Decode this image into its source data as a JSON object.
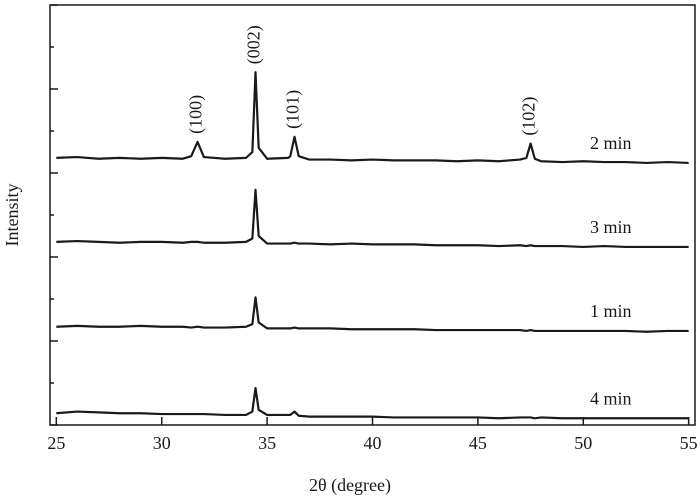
{
  "chart_data": {
    "type": "line",
    "xlabel": "2θ (degree)",
    "ylabel": "Intensity",
    "x": [
      25,
      26,
      27,
      28,
      29,
      30,
      31,
      31.4,
      31.7,
      32,
      33,
      34,
      34.3,
      34.45,
      34.6,
      35,
      36,
      36.1,
      36.3,
      36.5,
      37,
      38,
      39,
      40,
      41,
      42,
      43,
      44,
      45,
      46,
      47,
      47.3,
      47.5,
      47.7,
      48,
      49,
      50,
      51,
      52,
      53,
      54,
      55
    ],
    "series": [
      {
        "name": "2 min",
        "color": "#1a1a1a",
        "values": [
          3.18,
          3.19,
          3.17,
          3.18,
          3.17,
          3.18,
          3.17,
          3.2,
          3.37,
          3.19,
          3.17,
          3.18,
          3.25,
          4.2,
          3.3,
          3.17,
          3.18,
          3.2,
          3.43,
          3.2,
          3.16,
          3.16,
          3.15,
          3.16,
          3.15,
          3.15,
          3.15,
          3.14,
          3.15,
          3.14,
          3.16,
          3.18,
          3.35,
          3.17,
          3.14,
          3.13,
          3.14,
          3.13,
          3.13,
          3.12,
          3.13,
          3.12
        ]
      },
      {
        "name": "3 min",
        "color": "#1a1a1a",
        "values": [
          2.18,
          2.19,
          2.18,
          2.17,
          2.18,
          2.18,
          2.17,
          2.18,
          2.18,
          2.17,
          2.17,
          2.18,
          2.22,
          2.8,
          2.25,
          2.16,
          2.16,
          2.16,
          2.17,
          2.16,
          2.16,
          2.15,
          2.16,
          2.15,
          2.15,
          2.15,
          2.14,
          2.14,
          2.14,
          2.13,
          2.14,
          2.13,
          2.14,
          2.13,
          2.13,
          2.13,
          2.12,
          2.13,
          2.12,
          2.12,
          2.12,
          2.12
        ]
      },
      {
        "name": "1 min",
        "color": "#1a1a1a",
        "values": [
          1.17,
          1.18,
          1.17,
          1.17,
          1.18,
          1.17,
          1.17,
          1.16,
          1.17,
          1.16,
          1.16,
          1.17,
          1.2,
          1.52,
          1.22,
          1.15,
          1.15,
          1.15,
          1.16,
          1.15,
          1.15,
          1.15,
          1.14,
          1.14,
          1.14,
          1.14,
          1.13,
          1.13,
          1.13,
          1.13,
          1.13,
          1.12,
          1.13,
          1.12,
          1.12,
          1.12,
          1.12,
          1.12,
          1.12,
          1.11,
          1.12,
          1.12
        ]
      },
      {
        "name": "4 min",
        "color": "#1a1a1a",
        "values": [
          0.14,
          0.16,
          0.15,
          0.14,
          0.14,
          0.13,
          0.13,
          0.13,
          0.13,
          0.13,
          0.12,
          0.12,
          0.16,
          0.44,
          0.18,
          0.12,
          0.12,
          0.12,
          0.16,
          0.11,
          0.1,
          0.1,
          0.1,
          0.1,
          0.09,
          0.09,
          0.09,
          0.09,
          0.09,
          0.08,
          0.09,
          0.09,
          0.09,
          0.08,
          0.09,
          0.08,
          0.08,
          0.08,
          0.08,
          0.08,
          0.08,
          0.08
        ]
      }
    ],
    "annotations": [
      {
        "label": "(100)",
        "x": 31.7
      },
      {
        "label": "(002)",
        "x": 34.45
      },
      {
        "label": "(101)",
        "x": 36.3
      },
      {
        "label": "(102)",
        "x": 47.5
      }
    ],
    "xlim": [
      24.7,
      55.3
    ],
    "xticks": [
      25,
      30,
      35,
      40,
      45,
      50,
      55
    ],
    "ylim": [
      0,
      5
    ],
    "yticks": [
      0,
      0.5,
      1,
      1.5,
      2,
      2.5,
      3,
      3.5,
      4,
      4.5,
      5
    ]
  }
}
